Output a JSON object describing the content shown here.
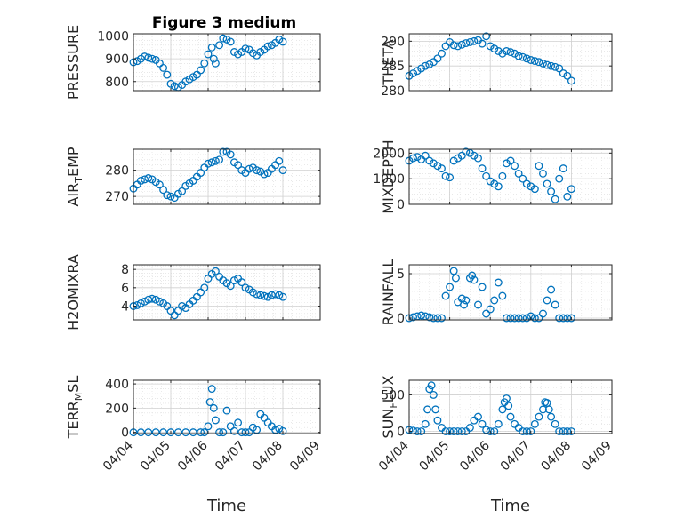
{
  "figure_title": "Figure 3 medium",
  "marker_color": "#0072BD",
  "chart_data": [
    {
      "type": "scatter",
      "name": "pressure",
      "ylabel": "PRESSURE",
      "ylim": [
        760,
        1010
      ],
      "yticks": [
        800,
        900,
        1000
      ],
      "ytick_labels": [
        "800",
        "900",
        "1000"
      ],
      "xlim": [
        0,
        5
      ],
      "xtick_labels": [
        "04/04",
        "04/05",
        "04/06",
        "04/07",
        "04/08",
        "04/09"
      ],
      "xlabel": "",
      "x": [
        0,
        0.1,
        0.2,
        0.3,
        0.4,
        0.5,
        0.6,
        0.7,
        0.8,
        0.9,
        1.0,
        1.1,
        1.2,
        1.3,
        1.4,
        1.5,
        1.6,
        1.7,
        1.8,
        1.9,
        2.0,
        2.1,
        2.15,
        2.2,
        2.3,
        2.4,
        2.5,
        2.6,
        2.7,
        2.8,
        2.9,
        3.0,
        3.1,
        3.2,
        3.3,
        3.4,
        3.5,
        3.6,
        3.7,
        3.8,
        3.9,
        4.0
      ],
      "y": [
        885,
        890,
        900,
        910,
        905,
        900,
        895,
        880,
        860,
        830,
        790,
        780,
        775,
        785,
        800,
        810,
        820,
        830,
        850,
        880,
        920,
        950,
        900,
        880,
        960,
        990,
        985,
        975,
        930,
        920,
        930,
        945,
        940,
        925,
        915,
        930,
        940,
        955,
        960,
        970,
        985,
        975
      ]
    },
    {
      "type": "scatter",
      "name": "theta",
      "ylabel": "THETA",
      "ylim": [
        280,
        291.5
      ],
      "yticks": [
        280,
        285,
        290
      ],
      "ytick_labels": [
        "280",
        "285",
        "290"
      ],
      "xlim": [
        0,
        5
      ],
      "xtick_labels": [
        "04/04",
        "04/05",
        "04/06",
        "04/07",
        "04/08",
        "04/09"
      ],
      "xlabel": "",
      "x": [
        0,
        0.1,
        0.2,
        0.3,
        0.4,
        0.5,
        0.6,
        0.7,
        0.8,
        0.9,
        1.0,
        1.1,
        1.2,
        1.3,
        1.4,
        1.5,
        1.6,
        1.7,
        1.8,
        1.9,
        2.0,
        2.1,
        2.2,
        2.3,
        2.4,
        2.5,
        2.6,
        2.7,
        2.8,
        2.9,
        3.0,
        3.1,
        3.2,
        3.3,
        3.4,
        3.5,
        3.6,
        3.7,
        3.8,
        3.9,
        4.0
      ],
      "y": [
        283,
        283.5,
        284,
        284.5,
        285,
        285.3,
        285.8,
        286.5,
        287.5,
        289,
        289.8,
        289.2,
        289,
        289.3,
        289.6,
        289.8,
        290,
        290.2,
        289.5,
        291,
        289,
        288.5,
        288,
        287.5,
        288,
        287.8,
        287.5,
        287,
        286.8,
        286.5,
        286.2,
        286,
        285.8,
        285.5,
        285.2,
        285,
        284.8,
        284.5,
        283.5,
        283,
        282
      ]
    },
    {
      "type": "scatter",
      "name": "air_temp",
      "ylabel": "AIR_TEMP",
      "ylim": [
        267,
        288
      ],
      "yticks": [
        270,
        280
      ],
      "ytick_labels": [
        "270",
        "280"
      ],
      "xlim": [
        0,
        5
      ],
      "xtick_labels": [
        "04/04",
        "04/05",
        "04/06",
        "04/07",
        "04/08",
        "04/09"
      ],
      "xlabel": "",
      "x": [
        0,
        0.1,
        0.2,
        0.3,
        0.4,
        0.5,
        0.6,
        0.7,
        0.8,
        0.9,
        1.0,
        1.1,
        1.2,
        1.3,
        1.4,
        1.5,
        1.6,
        1.7,
        1.8,
        1.9,
        2.0,
        2.1,
        2.2,
        2.3,
        2.4,
        2.5,
        2.6,
        2.7,
        2.8,
        2.9,
        3.0,
        3.1,
        3.2,
        3.3,
        3.4,
        3.5,
        3.6,
        3.7,
        3.8,
        3.9,
        4.0
      ],
      "y": [
        273,
        274.5,
        276,
        276.5,
        277,
        276.5,
        275.5,
        274.5,
        272.5,
        270.5,
        270,
        269.5,
        271,
        272,
        274,
        275,
        276,
        277.5,
        279,
        281,
        282.5,
        283,
        283.5,
        284,
        287,
        287,
        286,
        283,
        282,
        280,
        279,
        280.5,
        281,
        280,
        279.5,
        278.5,
        279,
        280.5,
        282,
        283.5,
        280
      ]
    },
    {
      "type": "scatter",
      "name": "mixdepth",
      "ylabel": "MIXDEPTH",
      "ylim": [
        0,
        2150
      ],
      "yticks": [
        0,
        1000,
        2000
      ],
      "ytick_labels": [
        "0",
        "1000",
        "2000"
      ],
      "xlim": [
        0,
        5
      ],
      "xtick_labels": [
        "04/04",
        "04/05",
        "04/06",
        "04/07",
        "04/08",
        "04/09"
      ],
      "xlabel": "",
      "x": [
        0,
        0.1,
        0.2,
        0.3,
        0.4,
        0.5,
        0.6,
        0.7,
        0.8,
        0.9,
        1.0,
        1.1,
        1.2,
        1.3,
        1.4,
        1.5,
        1.6,
        1.7,
        1.8,
        1.9,
        2.0,
        2.1,
        2.2,
        2.3,
        2.4,
        2.5,
        2.6,
        2.7,
        2.8,
        2.9,
        3.0,
        3.1,
        3.2,
        3.3,
        3.4,
        3.5,
        3.6,
        3.7,
        3.8,
        3.9,
        4.0
      ],
      "y": [
        1700,
        1800,
        1850,
        1750,
        1900,
        1700,
        1600,
        1500,
        1400,
        1100,
        1050,
        1700,
        1800,
        1900,
        2050,
        2000,
        1900,
        1800,
        1400,
        1100,
        900,
        800,
        700,
        1100,
        1600,
        1700,
        1500,
        1200,
        1000,
        800,
        700,
        600,
        1500,
        1200,
        800,
        500,
        200,
        1000,
        1400,
        300,
        600
      ]
    },
    {
      "type": "scatter",
      "name": "h2omixra",
      "ylabel": "H2OMIXRA",
      "ylim": [
        2.5,
        8.5
      ],
      "yticks": [
        4,
        6,
        8
      ],
      "ytick_labels": [
        "4",
        "6",
        "8"
      ],
      "xlim": [
        0,
        5
      ],
      "xtick_labels": [
        "04/04",
        "04/05",
        "04/06",
        "04/07",
        "04/08",
        "04/09"
      ],
      "xlabel": "",
      "x": [
        0,
        0.1,
        0.2,
        0.3,
        0.4,
        0.5,
        0.6,
        0.7,
        0.8,
        0.9,
        1.0,
        1.1,
        1.2,
        1.3,
        1.4,
        1.5,
        1.6,
        1.7,
        1.8,
        1.9,
        2.0,
        2.1,
        2.2,
        2.3,
        2.4,
        2.5,
        2.6,
        2.7,
        2.8,
        2.9,
        3.0,
        3.1,
        3.2,
        3.3,
        3.4,
        3.5,
        3.6,
        3.7,
        3.8,
        3.9,
        4.0
      ],
      "y": [
        4,
        4.1,
        4.3,
        4.5,
        4.7,
        4.8,
        4.7,
        4.5,
        4.3,
        4.0,
        3.5,
        3.0,
        3.5,
        4.0,
        3.8,
        4.2,
        4.6,
        5.0,
        5.5,
        6.0,
        7.0,
        7.5,
        7.8,
        7.2,
        6.8,
        6.5,
        6.2,
        6.8,
        7.0,
        6.6,
        6.0,
        5.8,
        5.5,
        5.3,
        5.2,
        5.1,
        5.0,
        5.2,
        5.3,
        5.2,
        5.0
      ]
    },
    {
      "type": "scatter",
      "name": "rainfall",
      "ylabel": "RAINFALL",
      "ylim": [
        -0.2,
        6
      ],
      "yticks": [
        0,
        5
      ],
      "ytick_labels": [
        "0",
        "5"
      ],
      "xlim": [
        0,
        5
      ],
      "xtick_labels": [
        "04/04",
        "04/05",
        "04/06",
        "04/07",
        "04/08",
        "04/09"
      ],
      "xlabel": "",
      "x": [
        0,
        0.1,
        0.2,
        0.3,
        0.4,
        0.5,
        0.6,
        0.7,
        0.8,
        0.9,
        1.0,
        1.1,
        1.15,
        1.2,
        1.3,
        1.35,
        1.4,
        1.5,
        1.55,
        1.6,
        1.7,
        1.8,
        1.9,
        2.0,
        2.1,
        2.2,
        2.3,
        2.4,
        2.5,
        2.6,
        2.7,
        2.8,
        2.9,
        3.0,
        3.1,
        3.2,
        3.3,
        3.4,
        3.5,
        3.6,
        3.7,
        3.8,
        3.9,
        4.0
      ],
      "y": [
        0,
        0.1,
        0.2,
        0.3,
        0.2,
        0.1,
        0,
        0,
        0,
        2.5,
        3.5,
        5.3,
        4.5,
        1.8,
        2.2,
        1.5,
        2.0,
        4.5,
        4.8,
        4.3,
        1.5,
        3.5,
        0.5,
        1.0,
        2.0,
        4.0,
        2.5,
        0,
        0,
        0,
        0,
        0,
        0,
        0.2,
        0,
        0,
        0.5,
        2.0,
        3.2,
        1.5,
        0,
        0,
        0,
        0
      ]
    },
    {
      "type": "scatter",
      "name": "terr_msl",
      "ylabel": "TERR_MSL",
      "ylim": [
        -10,
        430
      ],
      "yticks": [
        0,
        200,
        400
      ],
      "ytick_labels": [
        "0",
        "200",
        "400"
      ],
      "xlim": [
        0,
        5
      ],
      "xtick_labels": [
        "04/04",
        "04/05",
        "04/06",
        "04/07",
        "04/08",
        "04/09"
      ],
      "xlabel": "Time",
      "x": [
        0,
        0.2,
        0.4,
        0.6,
        0.8,
        1.0,
        1.2,
        1.4,
        1.6,
        1.8,
        1.9,
        2.0,
        2.05,
        2.1,
        2.15,
        2.2,
        2.3,
        2.4,
        2.5,
        2.6,
        2.7,
        2.8,
        2.9,
        3.0,
        3.1,
        3.2,
        3.3,
        3.4,
        3.5,
        3.6,
        3.7,
        3.8,
        3.9,
        4.0
      ],
      "y": [
        0,
        0,
        0,
        0,
        0,
        0,
        0,
        0,
        0,
        0,
        0,
        50,
        250,
        360,
        200,
        100,
        0,
        0,
        180,
        50,
        10,
        80,
        0,
        0,
        0,
        40,
        20,
        150,
        120,
        80,
        50,
        20,
        30,
        10
      ]
    },
    {
      "type": "scatter",
      "name": "sun_flux",
      "ylabel": "SUN_FLUX",
      "ylim": [
        -30,
        700
      ],
      "yticks": [
        0,
        500
      ],
      "ytick_labels": [
        "0",
        "500"
      ],
      "xlim": [
        0,
        5
      ],
      "xtick_labels": [
        "04/04",
        "04/05",
        "04/06",
        "04/07",
        "04/08",
        "04/09"
      ],
      "xlabel": "Time",
      "x": [
        0,
        0.1,
        0.2,
        0.3,
        0.4,
        0.45,
        0.5,
        0.55,
        0.6,
        0.65,
        0.7,
        0.8,
        0.9,
        1.0,
        1.1,
        1.2,
        1.3,
        1.4,
        1.5,
        1.6,
        1.7,
        1.8,
        1.9,
        2.0,
        2.1,
        2.2,
        2.3,
        2.35,
        2.4,
        2.45,
        2.5,
        2.6,
        2.7,
        2.8,
        2.9,
        3.0,
        3.1,
        3.2,
        3.3,
        3.35,
        3.4,
        3.45,
        3.5,
        3.6,
        3.7,
        3.8,
        3.9,
        4.0
      ],
      "y": [
        20,
        10,
        0,
        0,
        100,
        300,
        580,
        630,
        500,
        300,
        150,
        50,
        0,
        0,
        0,
        0,
        0,
        0,
        50,
        150,
        200,
        100,
        20,
        0,
        0,
        100,
        300,
        400,
        450,
        350,
        200,
        100,
        50,
        0,
        0,
        0,
        100,
        200,
        300,
        400,
        390,
        300,
        200,
        100,
        0,
        0,
        0,
        0
      ]
    }
  ]
}
